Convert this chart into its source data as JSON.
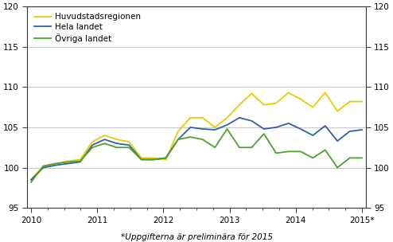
{
  "footnote": "*Uppgifterna är preliminära för 2015",
  "legend_labels": [
    "Huvudstadsregionen",
    "Hela landet",
    "Övriga landet"
  ],
  "line_colors": [
    "#e8cc00",
    "#3060a8",
    "#4ea030"
  ],
  "ylim": [
    95,
    120
  ],
  "yticks": [
    95,
    100,
    105,
    110,
    115,
    120
  ],
  "xtick_labels": [
    "2010",
    "2011",
    "2012",
    "2013",
    "2014",
    "2015*"
  ],
  "n_points": 28,
  "x_year_positions": [
    0,
    4.5,
    9,
    13.5,
    18,
    22.5
  ],
  "xlim": [
    -0.3,
    27.3
  ],
  "huvudstadsregionen": [
    98.5,
    100.2,
    100.5,
    100.8,
    101.0,
    103.2,
    104.0,
    103.5,
    103.2,
    101.2,
    101.2,
    101.0,
    104.5,
    106.2,
    106.2,
    105.0,
    106.2,
    107.8,
    109.2,
    107.8,
    108.0,
    109.3,
    108.5,
    107.5,
    109.3,
    107.0,
    108.2,
    108.2
  ],
  "hela_landet": [
    98.5,
    100.0,
    100.3,
    100.5,
    100.7,
    102.8,
    103.5,
    103.0,
    102.8,
    101.0,
    101.0,
    101.2,
    103.5,
    105.0,
    104.8,
    104.7,
    105.3,
    106.2,
    105.8,
    104.8,
    105.0,
    105.5,
    104.8,
    104.0,
    105.2,
    103.3,
    104.5,
    104.7
  ],
  "ovriga_landet": [
    98.2,
    100.2,
    100.5,
    100.7,
    100.8,
    102.5,
    103.0,
    102.5,
    102.5,
    101.0,
    101.0,
    101.2,
    103.5,
    103.8,
    103.5,
    102.5,
    104.8,
    102.5,
    102.5,
    104.2,
    101.8,
    102.0,
    102.0,
    101.2,
    102.2,
    100.0,
    101.2,
    101.2
  ],
  "grid_color": "#c8c8c8",
  "spine_color": "#404040",
  "tick_fontsize": 7.5,
  "legend_fontsize": 7.5,
  "footnote_fontsize": 7.5
}
